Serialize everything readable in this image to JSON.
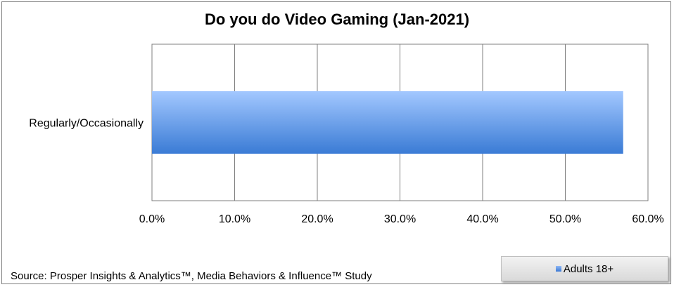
{
  "chart_data": {
    "type": "bar",
    "orientation": "horizontal",
    "title": "Do you do Video Gaming (Jan-2021)",
    "categories": [
      "Regularly/Occasionally"
    ],
    "series": [
      {
        "name": "Adults 18+",
        "values": [
          57.0
        ]
      }
    ],
    "xlim": [
      0,
      60
    ],
    "xticks": [
      "0.0%",
      "10.0%",
      "20.0%",
      "30.0%",
      "40.0%",
      "50.0%",
      "60.0%"
    ],
    "grid": true,
    "legend_position": "bottom-right",
    "colors": {
      "bar_top": "#9cc3ff",
      "bar_bottom": "#3a7bd5",
      "grid": "#7f7f7f"
    }
  },
  "source": "Source: Prosper Insights & Analytics™, Media Behaviors & Influence™ Study"
}
